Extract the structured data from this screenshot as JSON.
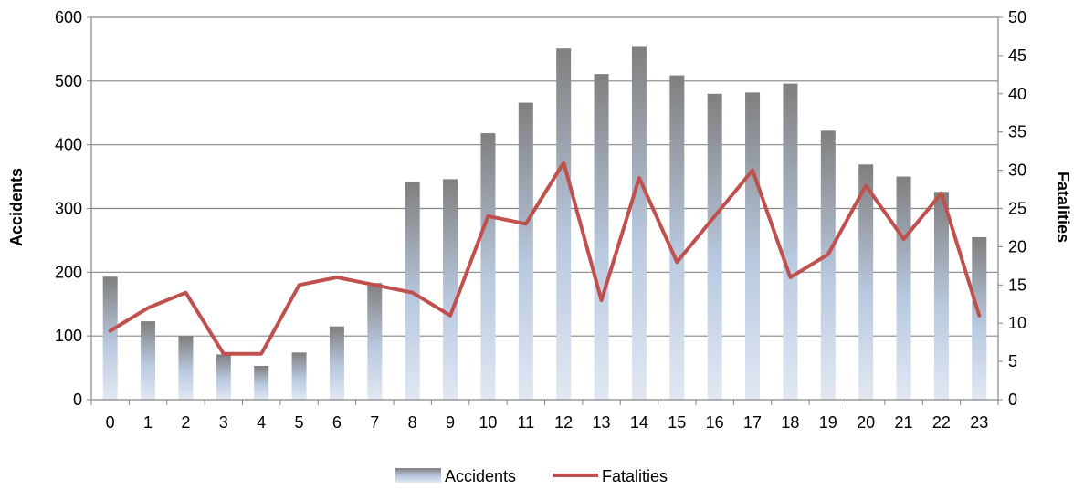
{
  "chart_data": {
    "type": "bar",
    "categories": [
      "0",
      "1",
      "2",
      "3",
      "4",
      "5",
      "6",
      "7",
      "8",
      "9",
      "10",
      "11",
      "12",
      "13",
      "14",
      "15",
      "16",
      "17",
      "18",
      "19",
      "20",
      "21",
      "22",
      "23"
    ],
    "series": [
      {
        "name": "Accidents",
        "type": "bar",
        "axis": "left",
        "values": [
          193,
          123,
          100,
          71,
          53,
          74,
          115,
          183,
          341,
          346,
          418,
          466,
          551,
          511,
          555,
          509,
          480,
          482,
          496,
          422,
          369,
          350,
          326,
          255
        ]
      },
      {
        "name": "Fatalities",
        "type": "line",
        "axis": "right",
        "color": "#c0504d",
        "values": [
          9,
          12,
          14,
          6,
          6,
          15,
          16,
          15,
          14,
          11,
          24,
          23,
          31,
          13,
          29,
          18,
          24,
          30,
          16,
          19,
          28,
          21,
          27,
          11
        ]
      }
    ],
    "xlabel": "",
    "ylabel": "Accidents",
    "ylabel_right": "Fatalities",
    "ylim": [
      0,
      600
    ],
    "ylim_right": [
      0,
      50
    ],
    "yticks": [
      "0",
      "100",
      "200",
      "300",
      "400",
      "500",
      "600"
    ],
    "yticks_right": [
      "0",
      "5",
      "10",
      "15",
      "20",
      "25",
      "30",
      "35",
      "40",
      "45",
      "50"
    ],
    "grid": true,
    "legend_position": "bottom"
  }
}
